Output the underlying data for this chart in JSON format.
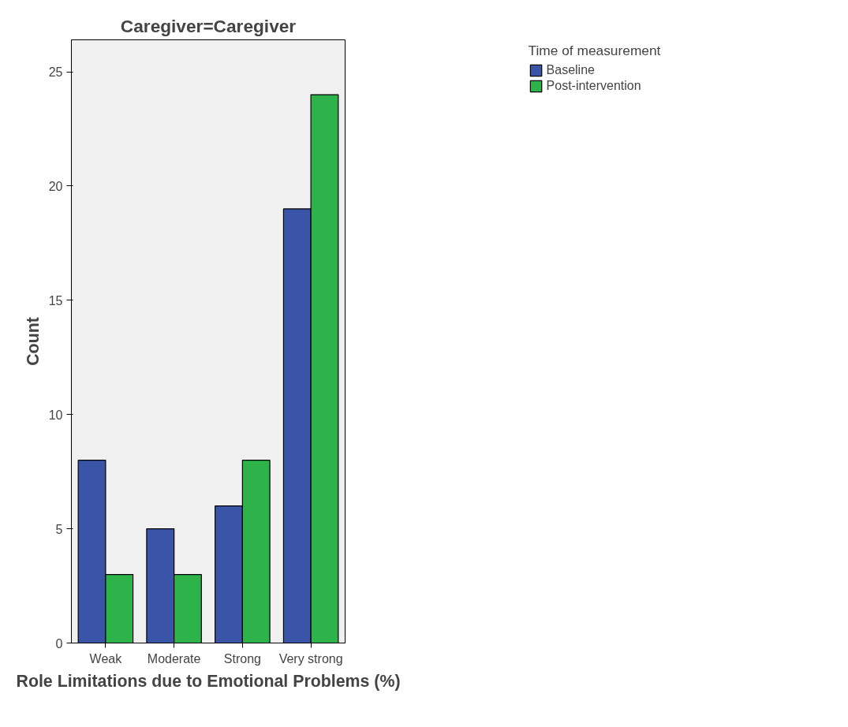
{
  "chart_data": {
    "type": "bar",
    "title": "Caregiver=Caregiver",
    "xlabel": "Role Limitations due to Emotional Problems (%)",
    "ylabel": "Count",
    "legend_title": "Time of measurement",
    "categories": [
      "Weak",
      "Moderate",
      "Strong",
      "Very strong"
    ],
    "series": [
      {
        "name": "Baseline",
        "color": "#3a55a8",
        "values": [
          8,
          5,
          6,
          19
        ]
      },
      {
        "name": "Post-intervention",
        "color": "#2db34a",
        "values": [
          3,
          3,
          8,
          24
        ]
      }
    ],
    "ylim": [
      0,
      26.4
    ],
    "yticks": [
      0,
      5,
      10,
      15,
      20,
      25
    ],
    "grid": false,
    "legend": "top right"
  }
}
